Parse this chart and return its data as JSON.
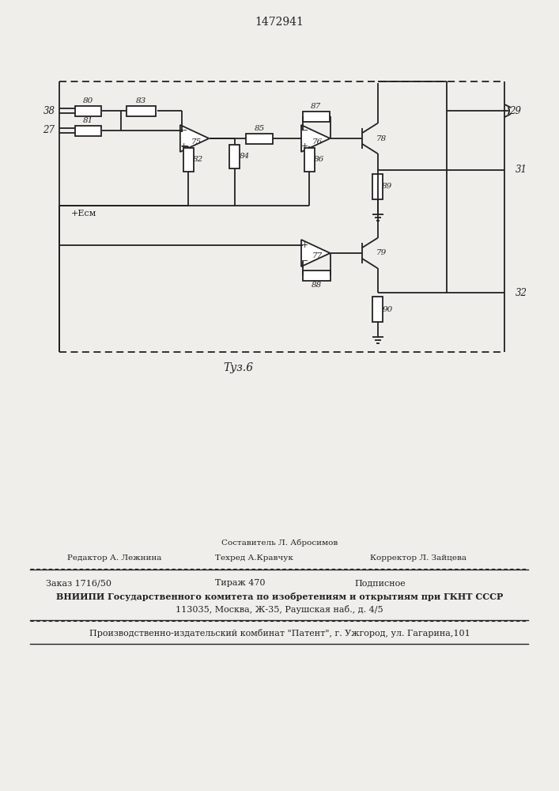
{
  "patent_number": "1472941",
  "figure_label": "Τуз.6",
  "background_color": "#f0eeeb",
  "line_color": "#222222",
  "text_color": "#222222",
  "footer": {
    "line1_center": "Составитель Л. Абросимов",
    "line2_left": "Редактор А. Лежнина",
    "line2_center": "Техред А.Кравчук",
    "line2_right": "Корректор Л. Зайцева",
    "line3_left": "Заказ 1716/50",
    "line3_center": "Тираж 470",
    "line3_right": "Подписное",
    "line4": "ВНИИПИ Государственного комитета по изобретениям и открытиям при ГКНТ СССР",
    "line5": "113035, Москва, Ж-35, Раушская наб., д. 4/5",
    "line6": "Производственно-издательский комбинат \"Патент\", г. Ужгород, ул. Гагарина,101"
  }
}
